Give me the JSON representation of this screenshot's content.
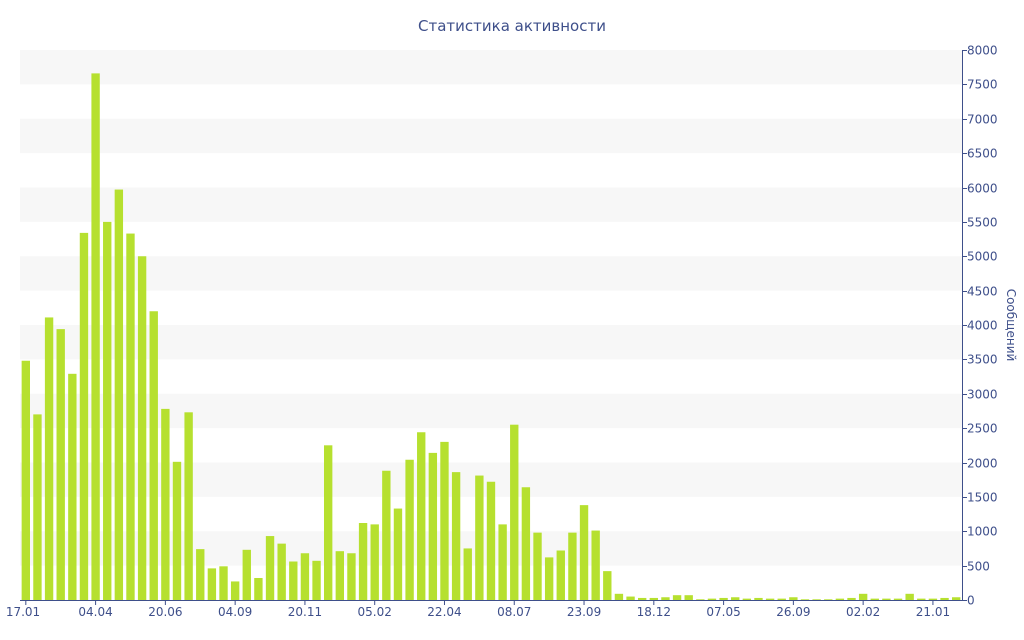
{
  "colors": {
    "bar": "#b6e02f",
    "band": "#f7f7f7",
    "axis": "#3e4f8a",
    "text": "#3e4f8a"
  },
  "chart_data": {
    "type": "bar",
    "title": "Статистика активности",
    "ylabel": "Сообщений",
    "xlabel": "",
    "ylim": [
      0,
      8000
    ],
    "y_axis_side": "right",
    "y_ticks": [
      0,
      500,
      1000,
      1500,
      2000,
      2500,
      3000,
      3500,
      4000,
      4500,
      5000,
      5500,
      6000,
      6500,
      7000,
      7500,
      8000
    ],
    "x_tick_labels": [
      {
        "label": "17.01",
        "index": 0
      },
      {
        "label": "04.04",
        "index": 6
      },
      {
        "label": "20.06",
        "index": 12
      },
      {
        "label": "04.09",
        "index": 18
      },
      {
        "label": "20.11",
        "index": 24
      },
      {
        "label": "05.02",
        "index": 30
      },
      {
        "label": "22.04",
        "index": 36
      },
      {
        "label": "08.07",
        "index": 42
      },
      {
        "label": "23.09",
        "index": 48
      },
      {
        "label": "18.12",
        "index": 54
      },
      {
        "label": "07.05",
        "index": 60
      },
      {
        "label": "26.09",
        "index": 66
      },
      {
        "label": "02.02",
        "index": 72
      },
      {
        "label": "21.01",
        "index": 78
      }
    ],
    "grid_bands": true,
    "series": [
      {
        "values": [
          3480,
          2700,
          4110,
          3940,
          3290,
          5340,
          7660,
          5500,
          5970,
          5330,
          5000,
          4200,
          2780,
          2010,
          2730,
          740,
          460,
          490,
          270,
          730,
          320,
          930,
          820,
          560,
          680,
          570,
          2250,
          710,
          680,
          1120,
          1100,
          1880,
          1330,
          2040,
          2440,
          2140,
          2300,
          1860,
          750,
          1810,
          1720,
          1100,
          2550,
          1640,
          980,
          620,
          720,
          980,
          1380,
          1010,
          420,
          90,
          50,
          30,
          30,
          40,
          70,
          70,
          10,
          20,
          30,
          40,
          20,
          30,
          20,
          20,
          40,
          10,
          10,
          10,
          20,
          30,
          90,
          20,
          20,
          20,
          90,
          20,
          20,
          30,
          40
        ]
      }
    ]
  }
}
